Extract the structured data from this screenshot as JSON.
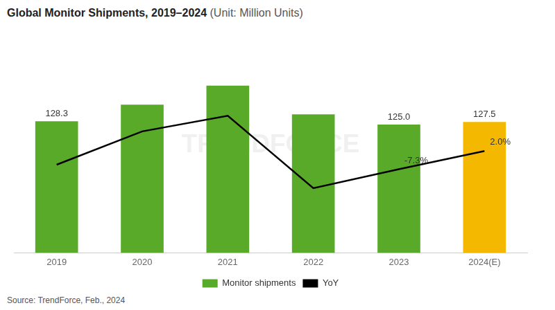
{
  "chart_data": {
    "type": "bar",
    "title": "Global Monitor Shipments, 2019–2024",
    "subtitle": "(Unit: Million Units)",
    "source": "Source: TrendForce, Feb., 2024",
    "annotations": [
      {
        "text": "TRENDFORCE"
      }
    ],
    "categories": [
      "2019",
      "2020",
      "2021",
      "2022",
      "2023",
      "2024(E)"
    ],
    "series": [
      {
        "name": "Monitor shipments",
        "type": "bar",
        "colors": [
          "#5aaa2a",
          "#5aaa2a",
          "#5aaa2a",
          "#5aaa2a",
          "#5aaa2a",
          "#f5b800"
        ],
        "values": [
          128.3,
          144.5,
          163.0,
          135.0,
          125.0,
          127.5
        ],
        "data_labels": true,
        "value_labels": [
          "128.3",
          null,
          null,
          null,
          "125.0",
          "127.5"
        ]
      },
      {
        "name": "YoY",
        "type": "line",
        "axis": "y2",
        "color": "#000000",
        "line_style": "solid",
        "values": [
          -5.0,
          12.0,
          20.0,
          -17.0,
          -7.3,
          2.0
        ],
        "data_labels": true,
        "value_labels": [
          null,
          null,
          null,
          null,
          "-7.3%",
          "2.0%"
        ]
      }
    ],
    "ylim": [
      0,
      210
    ],
    "y2lim": [
      -50,
      60
    ],
    "grid": false,
    "legend": "bottom",
    "tick_labels": "x"
  }
}
